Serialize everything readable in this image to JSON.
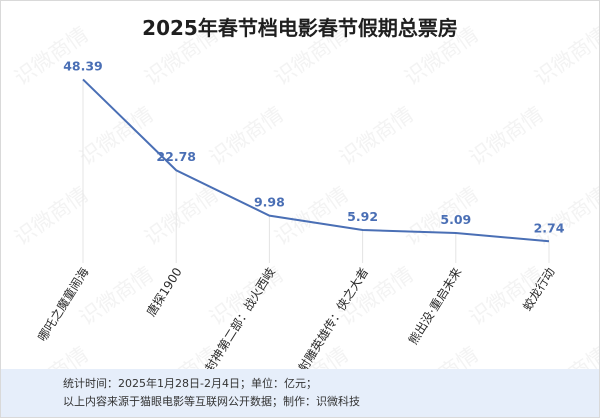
{
  "chart_data": {
    "type": "line",
    "title": "2025年春节档电影春节假期总票房",
    "categories": [
      "哪吒之魔童闹海",
      "唐探1900",
      "封神第二部：战火西岐",
      "射雕英雄传：侠之大者",
      "熊出没·重启未来",
      "蛟龙行动"
    ],
    "series": [
      {
        "values": [
          48.39,
          22.78,
          9.98,
          5.92,
          5.09,
          2.74
        ]
      }
    ],
    "value_labels": [
      "48.39",
      "22.78",
      "9.98",
      "5.92",
      "5.09",
      "2.74"
    ],
    "ylim": [
      0,
      55
    ],
    "grid": false,
    "line_color": "#4a6fb5"
  },
  "footer": {
    "line1": "统计时间：2025年1月28日-2月4日；单位：亿元；",
    "line2": "以上内容来源于猫眼电影等互联网公开数据；制作：识微科技"
  },
  "watermark": {
    "text": "识微商情"
  },
  "colors": {
    "accent": "#4a6fb5",
    "footer_bg": "#e6eefa"
  }
}
